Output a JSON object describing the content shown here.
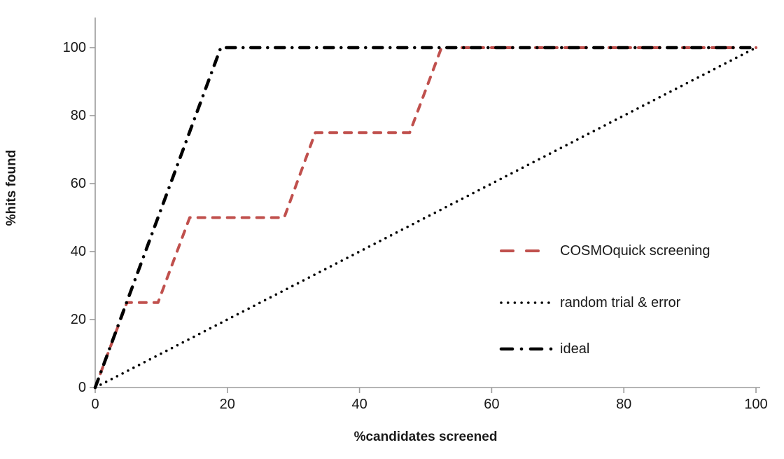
{
  "chart_data": {
    "type": "line",
    "title": "",
    "xlabel": "%candidates screened",
    "ylabel": "%hits found",
    "xlim": [
      0,
      100
    ],
    "ylim": [
      0,
      100
    ],
    "grid": false,
    "legend_position": "inside-right",
    "x_ticks": [
      {
        "value": 0,
        "label": "0"
      },
      {
        "value": 20,
        "label": "20"
      },
      {
        "value": 40,
        "label": "40"
      },
      {
        "value": 60,
        "label": "60"
      },
      {
        "value": 80,
        "label": "80"
      },
      {
        "value": 100,
        "label": "100"
      }
    ],
    "y_ticks": [
      {
        "value": 0,
        "label": "0"
      },
      {
        "value": 20,
        "label": "20"
      },
      {
        "value": 40,
        "label": "40"
      },
      {
        "value": 60,
        "label": "60"
      },
      {
        "value": 80,
        "label": "80"
      },
      {
        "value": 100,
        "label": "100"
      }
    ],
    "colors": {
      "axis": "#9b9b9b",
      "text": "#1a1a1a",
      "accent_red": "#c0504d",
      "black": "#000000"
    },
    "series": [
      {
        "name": "COSMOquick screening",
        "color": "#c0504d",
        "dash": "dashed",
        "width": 4,
        "points": [
          [
            0,
            0
          ],
          [
            4.8,
            25
          ],
          [
            9.5,
            25
          ],
          [
            14.3,
            50
          ],
          [
            28.6,
            50
          ],
          [
            33.3,
            75
          ],
          [
            47.6,
            75
          ],
          [
            52.4,
            100
          ],
          [
            100,
            100
          ]
        ]
      },
      {
        "name": "random trial & error",
        "color": "#000000",
        "dash": "dotted",
        "width": 3.6,
        "points": [
          [
            0,
            0
          ],
          [
            100,
            100
          ]
        ]
      },
      {
        "name": "ideal",
        "color": "#000000",
        "dash": "dash-dot",
        "width": 4.6,
        "points": [
          [
            0,
            0
          ],
          [
            19,
            100
          ],
          [
            100,
            100
          ]
        ]
      }
    ]
  }
}
